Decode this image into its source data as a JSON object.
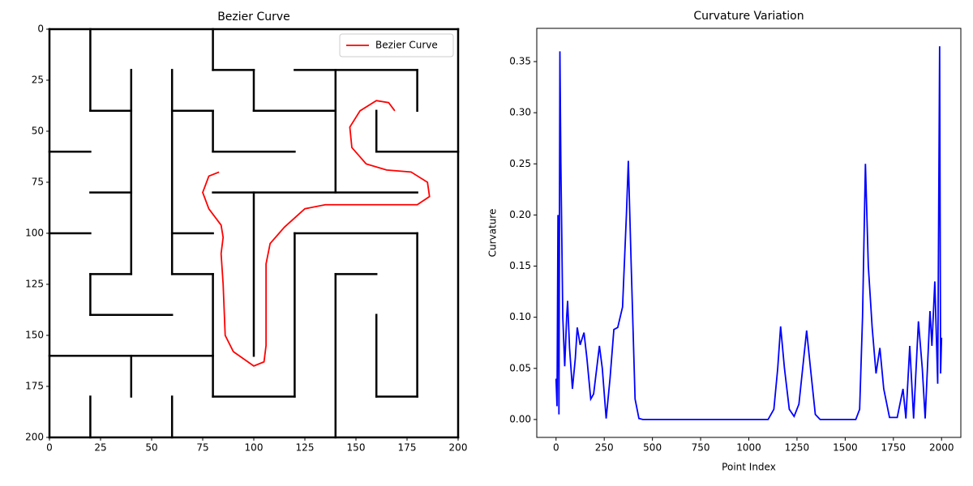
{
  "chart_data": [
    {
      "type": "line",
      "title": "Bezier Curve",
      "xlim": [
        0,
        200
      ],
      "ylim": [
        200,
        0
      ],
      "xticks": [
        0,
        25,
        50,
        75,
        100,
        125,
        150,
        175,
        200
      ],
      "yticks": [
        0,
        25,
        50,
        75,
        100,
        125,
        150,
        175,
        200
      ],
      "legend": "upper right",
      "walls": [
        [
          0,
          0,
          200,
          0
        ],
        [
          0,
          200,
          200,
          200
        ],
        [
          0,
          0,
          0,
          200
        ],
        [
          200,
          0,
          200,
          200
        ],
        [
          20,
          0,
          20,
          40
        ],
        [
          20,
          40,
          40,
          40
        ],
        [
          40,
          20,
          40,
          120
        ],
        [
          20,
          120,
          40,
          120
        ],
        [
          20,
          120,
          20,
          140
        ],
        [
          20,
          140,
          60,
          140
        ],
        [
          60,
          20,
          60,
          120
        ],
        [
          60,
          40,
          80,
          40
        ],
        [
          80,
          40,
          80,
          60
        ],
        [
          80,
          60,
          120,
          60
        ],
        [
          80,
          0,
          80,
          20
        ],
        [
          80,
          20,
          100,
          20
        ],
        [
          100,
          20,
          100,
          40
        ],
        [
          100,
          40,
          140,
          40
        ],
        [
          120,
          20,
          180,
          20
        ],
        [
          140,
          20,
          140,
          80
        ],
        [
          180,
          20,
          180,
          40
        ],
        [
          0,
          60,
          20,
          60
        ],
        [
          20,
          80,
          40,
          80
        ],
        [
          0,
          100,
          20,
          100
        ],
        [
          160,
          60,
          200,
          60
        ],
        [
          160,
          40,
          160,
          60
        ],
        [
          80,
          80,
          180,
          80
        ],
        [
          100,
          80,
          100,
          160
        ],
        [
          60,
          100,
          80,
          100
        ],
        [
          60,
          120,
          80,
          120
        ],
        [
          80,
          120,
          80,
          180
        ],
        [
          80,
          180,
          120,
          180
        ],
        [
          120,
          100,
          120,
          180
        ],
        [
          120,
          100,
          180,
          100
        ],
        [
          180,
          100,
          180,
          180
        ],
        [
          160,
          180,
          180,
          180
        ],
        [
          160,
          140,
          160,
          180
        ],
        [
          140,
          120,
          140,
          200
        ],
        [
          140,
          120,
          160,
          120
        ],
        [
          0,
          160,
          80,
          160
        ],
        [
          40,
          160,
          40,
          180
        ],
        [
          20,
          180,
          20,
          200
        ],
        [
          60,
          180,
          60,
          200
        ]
      ],
      "series": [
        {
          "name": "Bezier Curve",
          "color": "#ff0000",
          "x": [
            83,
            78,
            75,
            78,
            84,
            85,
            84,
            85,
            86,
            90,
            100,
            105,
            106,
            106,
            108,
            115,
            125,
            135,
            180,
            186,
            185,
            177,
            165,
            155,
            148,
            147,
            152,
            160,
            166,
            169
          ],
          "values": [
            70,
            72,
            80,
            88,
            96,
            102,
            110,
            125,
            150,
            158,
            165,
            163,
            155,
            115,
            105,
            97,
            88,
            86,
            86,
            82,
            75,
            70,
            69,
            66,
            58,
            48,
            40,
            35,
            36,
            40
          ]
        }
      ]
    },
    {
      "type": "line",
      "title": "Curvature Variation",
      "xlabel": "Point Index",
      "ylabel": "Curvature",
      "xlim": [
        -100,
        2100
      ],
      "ylim": [
        -0.0175,
        0.3825
      ],
      "xticks": [
        0,
        250,
        500,
        750,
        1000,
        1250,
        1500,
        1750,
        2000
      ],
      "yticks": [
        {
          "value": 0,
          "label": "0.00"
        },
        {
          "value": 0.05,
          "label": "0.05"
        },
        {
          "value": 0.1,
          "label": "0.10"
        },
        {
          "value": 0.15,
          "label": "0.15"
        },
        {
          "value": 0.2,
          "label": "0.20"
        },
        {
          "value": 0.25,
          "label": "0.25"
        },
        {
          "value": 0.3,
          "label": "0.30"
        },
        {
          "value": 0.35,
          "label": "0.35"
        }
      ],
      "series": [
        {
          "color": "#0000ff",
          "x": [
            0,
            5,
            10,
            15,
            20,
            25,
            35,
            45,
            55,
            60,
            70,
            85,
            100,
            110,
            125,
            145,
            160,
            180,
            195,
            225,
            240,
            260,
            280,
            300,
            320,
            345,
            365,
            375,
            390,
            410,
            430,
            450,
            1100,
            1130,
            1150,
            1165,
            1185,
            1210,
            1235,
            1260,
            1285,
            1300,
            1320,
            1345,
            1370,
            1555,
            1575,
            1590,
            1605,
            1620,
            1640,
            1660,
            1680,
            1700,
            1730,
            1770,
            1800,
            1815,
            1835,
            1855,
            1880,
            1900,
            1915,
            1940,
            1950,
            1965,
            1980,
            1990,
            1995,
            2000
          ],
          "values": [
            0.04,
            0.013,
            0.2,
            0.005,
            0.36,
            0.25,
            0.1,
            0.052,
            0.1,
            0.116,
            0.07,
            0.03,
            0.06,
            0.09,
            0.073,
            0.085,
            0.06,
            0.02,
            0.025,
            0.072,
            0.05,
            0.001,
            0.04,
            0.088,
            0.09,
            0.11,
            0.2,
            0.253,
            0.15,
            0.02,
            0.001,
            0,
            0,
            0.01,
            0.05,
            0.091,
            0.05,
            0.01,
            0.003,
            0.015,
            0.06,
            0.087,
            0.05,
            0.005,
            0,
            0,
            0.01,
            0.1,
            0.25,
            0.15,
            0.09,
            0.045,
            0.07,
            0.03,
            0.002,
            0.002,
            0.03,
            0.001,
            0.072,
            0.001,
            0.096,
            0.05,
            0.001,
            0.106,
            0.072,
            0.135,
            0.035,
            0.365,
            0.045,
            0.08
          ]
        }
      ]
    }
  ]
}
